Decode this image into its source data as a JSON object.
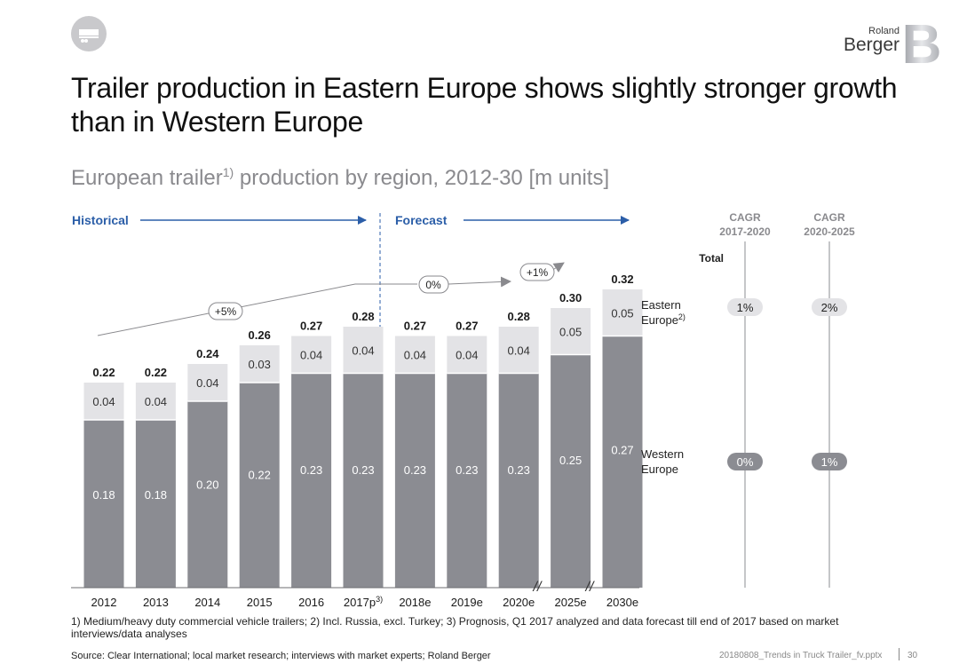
{
  "header": {
    "brand_line1": "Roland",
    "brand_line2": "Berger",
    "brand_mark": "B",
    "title": "Trailer production in Eastern Europe shows slightly stronger growth than in Western Europe",
    "subtitle_main": "European trailer",
    "subtitle_sup": "1)",
    "subtitle_rest": " production by region, 2012-30 [m units]"
  },
  "colors": {
    "western": "#8b8c92",
    "eastern": "#e3e3e6",
    "accent": "#2b5ea8",
    "arrow": "#8a8a8e"
  },
  "chart_data": {
    "type": "bar",
    "stacked": true,
    "categories": [
      "2012",
      "2013",
      "2014",
      "2015",
      "2016",
      "2017p",
      "2018e",
      "2019e",
      "2020e",
      "2025e",
      "2030e"
    ],
    "category_sup": [
      "",
      "",
      "",
      "",
      "",
      "3)",
      "",
      "",
      "",
      "",
      ""
    ],
    "series": [
      {
        "name": "Western Europe",
        "values": [
          0.18,
          0.18,
          0.2,
          0.22,
          0.23,
          0.23,
          0.23,
          0.23,
          0.23,
          0.25,
          0.27
        ]
      },
      {
        "name": "Eastern Europe",
        "values": [
          0.04,
          0.04,
          0.04,
          0.03,
          0.04,
          0.04,
          0.04,
          0.04,
          0.04,
          0.05,
          0.05
        ]
      }
    ],
    "totals": [
      0.22,
      0.22,
      0.24,
      0.26,
      0.27,
      0.28,
      0.27,
      0.27,
      0.28,
      0.3,
      0.32
    ],
    "value_labels_western": [
      "0.18",
      "0.18",
      "0.20",
      "0.22",
      "0.23",
      "0.23",
      "0.23",
      "0.23",
      "0.23",
      "0.25",
      "0.27"
    ],
    "value_labels_eastern": [
      "0.04",
      "0.04",
      "0.04",
      "0.03",
      "0.04",
      "0.04",
      "0.04",
      "0.04",
      "0.04",
      "0.05",
      "0.05"
    ],
    "total_labels": [
      "0.22",
      "0.22",
      "0.24",
      "0.26",
      "0.27",
      "0.28",
      "0.27",
      "0.27",
      "0.28",
      "0.30",
      "0.32"
    ],
    "ylim": [
      0,
      0.32
    ],
    "period_labels": {
      "historical": "Historical",
      "forecast": "Forecast"
    },
    "growth_labels": [
      "+5%",
      "0%",
      "+1%"
    ],
    "axis_break_marks": [
      "//",
      "//"
    ],
    "series_labels": {
      "eastern": "Eastern",
      "eastern_line2": "Europe",
      "eastern_sup": "2)",
      "western": "Western",
      "western_line2": "Europe"
    },
    "cagr": {
      "col1_line1": "CAGR",
      "col1_line2": "2017-2020",
      "col2_line1": "CAGR",
      "col2_line2": "2020-2025",
      "total_label": "Total",
      "eastern": [
        "1%",
        "2%"
      ],
      "western": [
        "0%",
        "1%"
      ]
    }
  },
  "footer": {
    "footnote": "1) Medium/heavy duty commercial vehicle trailers; 2) Incl. Russia, excl. Turkey; 3) Prognosis, Q1 2017 analyzed and data forecast till end of 2017 based on market interviews/data analyses",
    "source": "Source: Clear International; local market research; interviews with market experts; Roland Berger",
    "filename": "20180808_Trends in Truck Trailer_fv.pptx",
    "page": "30"
  }
}
